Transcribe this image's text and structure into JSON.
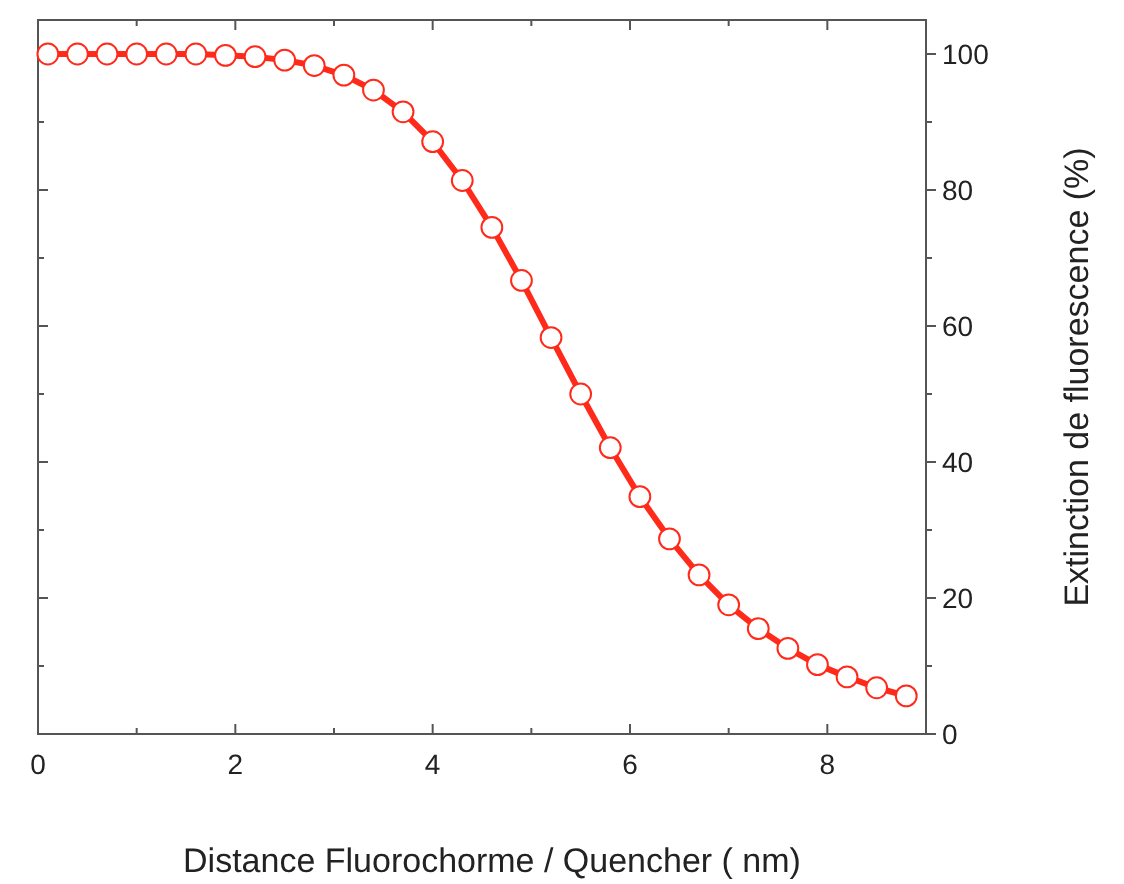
{
  "chart_data": {
    "type": "line",
    "xlabel": "Distance Fluorochorme / Quencher ( nm)",
    "ylabel": "Extinction de fluorescence (%)",
    "x": [
      0.1,
      0.4,
      0.7,
      1.0,
      1.3,
      1.6,
      1.9,
      2.2,
      2.5,
      2.8,
      3.1,
      3.4,
      3.7,
      4.0,
      4.3,
      4.6,
      4.9,
      5.2,
      5.5,
      5.8,
      6.1,
      6.4,
      6.7,
      7.0,
      7.3,
      7.6,
      7.9,
      8.2,
      8.5,
      8.8
    ],
    "series": [
      {
        "color": "#ff2a1a",
        "values": [
          100,
          100,
          100,
          100,
          100,
          100,
          99.8,
          99.6,
          99.1,
          98.3,
          96.9,
          94.7,
          91.5,
          87.1,
          81.4,
          74.5,
          66.7,
          58.3,
          50,
          42.1,
          34.9,
          28.7,
          23.4,
          19,
          15.5,
          12.6,
          10.2,
          8.4,
          6.8,
          5.6
        ]
      }
    ],
    "xlim": [
      0,
      9
    ],
    "xticks": [
      0,
      {
        "value": 1,
        "label": null
      },
      2,
      {
        "value": 3,
        "label": null
      },
      4,
      {
        "value": 5,
        "label": null
      },
      6,
      {
        "value": 7,
        "label": null
      },
      8,
      {
        "value": 9,
        "label": null
      }
    ],
    "ylim": [
      0,
      105
    ],
    "yticks": [
      0,
      {
        "value": 10,
        "label": null
      },
      20,
      {
        "value": 30,
        "label": null
      },
      40,
      {
        "value": 50,
        "label": null
      },
      60,
      {
        "value": 70,
        "label": null
      },
      80,
      {
        "value": 90,
        "label": null
      },
      100
    ],
    "marker": "circle",
    "line_style": "solid"
  }
}
